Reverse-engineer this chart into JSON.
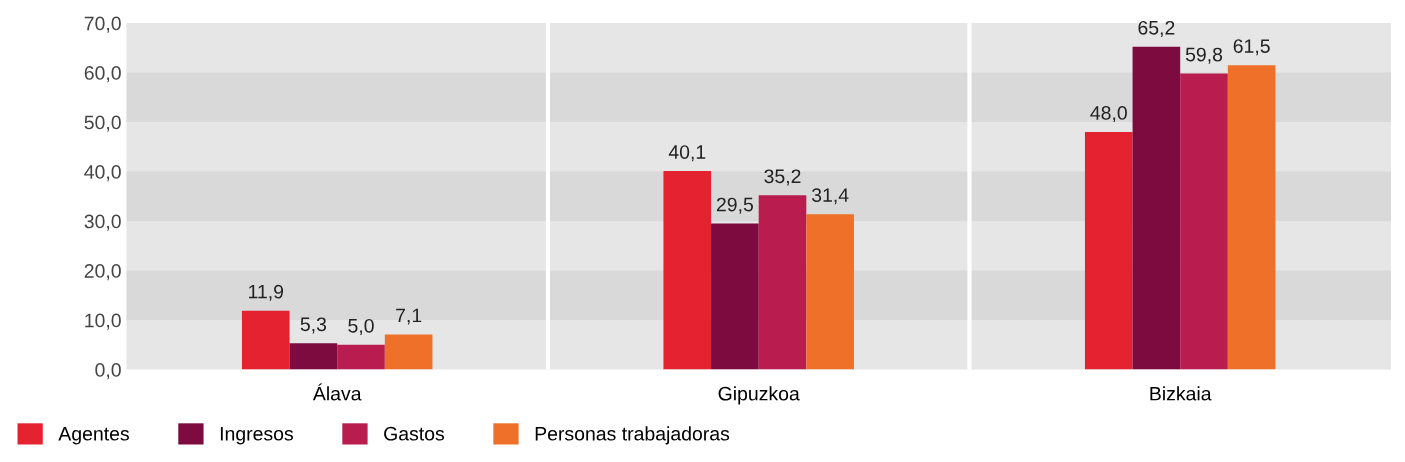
{
  "chart_data": {
    "type": "bar",
    "categories": [
      "Álava",
      "Gipuzkoa",
      "Bizkaia"
    ],
    "series": [
      {
        "name": "Agentes",
        "color": "#e52330",
        "values": [
          11.9,
          40.1,
          48.0
        ],
        "value_labels": [
          "11,9",
          "40,1",
          "48,0"
        ]
      },
      {
        "name": "Ingresos",
        "color": "#7d0b3f",
        "values": [
          5.3,
          29.5,
          65.2
        ],
        "value_labels": [
          "5,3",
          "29,5",
          "65,2"
        ]
      },
      {
        "name": "Gastos",
        "color": "#b91c4e",
        "values": [
          5.0,
          35.2,
          59.8
        ],
        "value_labels": [
          "5,0",
          "35,2",
          "59,8"
        ]
      },
      {
        "name": "Personas trabajadoras",
        "color": "#ef7028",
        "values": [
          7.1,
          31.4,
          61.5
        ],
        "value_labels": [
          "7,1",
          "31,4",
          "61,5"
        ]
      }
    ],
    "ylim": [
      0,
      70
    ],
    "yticks": [
      {
        "value": 0,
        "label": "0,0"
      },
      {
        "value": 10,
        "label": "10,0"
      },
      {
        "value": 20,
        "label": "20,0"
      },
      {
        "value": 30,
        "label": "30,0"
      },
      {
        "value": 40,
        "label": "40,0"
      },
      {
        "value": 50,
        "label": "50,0"
      },
      {
        "value": 60,
        "label": "60,0"
      },
      {
        "value": 70,
        "label": "70,0"
      }
    ],
    "bands": [
      {
        "axis": "y",
        "from": 10,
        "to": 20,
        "color": "#d9d9d9"
      },
      {
        "axis": "y",
        "from": 30,
        "to": 40,
        "color": "#d9d9d9"
      },
      {
        "axis": "y",
        "from": 50,
        "to": 60,
        "color": "#d9d9d9"
      }
    ],
    "legend": "bottom left"
  }
}
